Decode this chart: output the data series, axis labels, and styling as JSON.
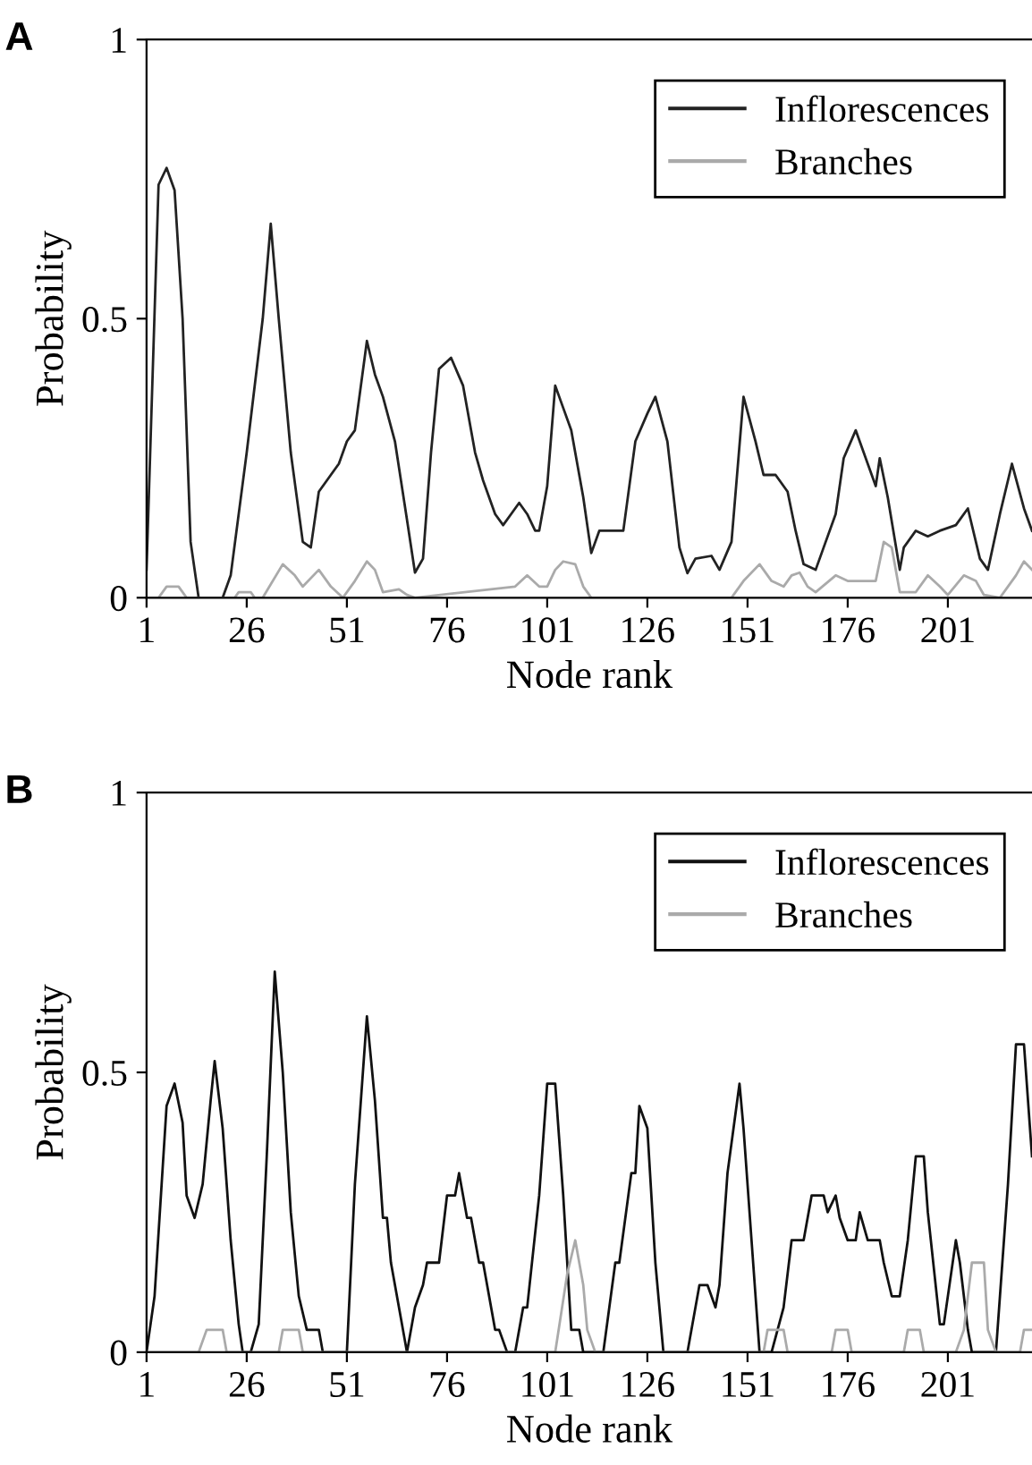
{
  "chart_data": [
    {
      "type": "line",
      "title": "A",
      "xlabel": "Node rank",
      "ylabel": "Probability",
      "xlim": [
        1,
        222
      ],
      "ylim": [
        0,
        1
      ],
      "xticks": [
        1,
        26,
        51,
        76,
        101,
        126,
        151,
        176,
        201
      ],
      "yticks": [
        0,
        0.5,
        1
      ],
      "grid": false,
      "legend": "top right",
      "marker": "none",
      "line_style": "solid",
      "series": [
        {
          "name": "Inflorescences",
          "color": "#222222",
          "x": [
            1,
            4,
            6,
            8,
            10,
            12,
            14,
            20,
            22,
            26,
            30,
            32,
            34,
            37,
            40,
            42,
            44,
            46,
            49,
            51,
            53,
            56,
            58,
            60,
            63,
            66,
            68,
            70,
            72,
            74,
            77,
            80,
            83,
            85,
            88,
            90,
            92,
            94,
            96,
            98,
            99,
            101,
            103,
            105,
            107,
            110,
            112,
            114,
            116,
            120,
            123,
            126,
            128,
            131,
            134,
            136,
            138,
            142,
            144,
            147,
            150,
            153,
            155,
            158,
            161,
            163,
            165,
            168,
            170,
            173,
            175,
            178,
            180,
            183,
            184,
            186,
            189,
            190,
            193,
            196,
            199,
            203,
            206,
            209,
            211,
            214,
            217,
            220,
            222
          ],
          "values": [
            0.05,
            0.74,
            0.77,
            0.73,
            0.5,
            0.1,
            0,
            0,
            0.04,
            0.26,
            0.5,
            0.67,
            0.5,
            0.26,
            0.1,
            0.09,
            0.19,
            0.21,
            0.24,
            0.28,
            0.3,
            0.46,
            0.4,
            0.36,
            0.28,
            0.14,
            0.045,
            0.07,
            0.26,
            0.41,
            0.43,
            0.38,
            0.26,
            0.21,
            0.15,
            0.13,
            0.15,
            0.17,
            0.15,
            0.12,
            0.12,
            0.2,
            0.38,
            0.34,
            0.3,
            0.18,
            0.08,
            0.12,
            0.12,
            0.12,
            0.28,
            0.33,
            0.36,
            0.28,
            0.09,
            0.044,
            0.07,
            0.075,
            0.05,
            0.1,
            0.36,
            0.28,
            0.22,
            0.22,
            0.19,
            0.12,
            0.06,
            0.05,
            0.09,
            0.15,
            0.25,
            0.3,
            0.26,
            0.2,
            0.25,
            0.18,
            0.05,
            0.09,
            0.12,
            0.11,
            0.12,
            0.13,
            0.16,
            0.07,
            0.05,
            0.15,
            0.24,
            0.16,
            0.12
          ]
        },
        {
          "name": "Branches",
          "color": "#aaaaaa",
          "x": [
            1,
            4,
            6,
            9,
            11,
            23,
            24,
            27,
            28,
            30,
            35,
            38,
            40,
            44,
            47,
            50,
            53,
            56,
            58,
            60,
            64,
            66,
            68,
            93,
            96,
            99,
            101,
            103,
            105,
            108,
            110,
            112,
            147,
            150,
            154,
            157,
            160,
            162,
            164,
            166,
            168,
            173,
            176,
            183,
            185,
            187,
            189,
            193,
            196,
            199,
            201,
            205,
            208,
            210,
            214,
            218,
            220,
            222
          ],
          "values": [
            0,
            0,
            0.02,
            0.02,
            0,
            0,
            0.01,
            0.01,
            0,
            0,
            0.06,
            0.04,
            0.02,
            0.05,
            0.02,
            0,
            0.03,
            0.065,
            0.05,
            0.01,
            0.015,
            0.005,
            0,
            0.02,
            0.04,
            0.02,
            0.02,
            0.05,
            0.065,
            0.06,
            0.02,
            0,
            0,
            0.03,
            0.06,
            0.03,
            0.02,
            0.04,
            0.045,
            0.02,
            0.01,
            0.04,
            0.03,
            0.03,
            0.1,
            0.09,
            0.01,
            0.01,
            0.04,
            0.02,
            0.005,
            0.04,
            0.03,
            0.005,
            0,
            0.04,
            0.065,
            0.05
          ]
        }
      ]
    },
    {
      "type": "line",
      "title": "B",
      "xlabel": "Node rank",
      "ylabel": "Probability",
      "xlim": [
        1,
        222
      ],
      "ylim": [
        0,
        1
      ],
      "xticks": [
        1,
        26,
        51,
        76,
        101,
        126,
        151,
        176,
        201
      ],
      "yticks": [
        0,
        0.5,
        1
      ],
      "grid": false,
      "legend": "top right",
      "marker": "none",
      "line_style": "solid",
      "series": [
        {
          "name": "Inflorescences",
          "color": "#111111",
          "x": [
            1,
            3,
            6,
            8,
            10,
            11,
            13,
            15,
            17,
            18,
            20,
            22,
            24,
            25,
            27,
            29,
            31,
            33,
            35,
            37,
            39,
            41,
            44,
            45,
            51,
            53,
            56,
            58,
            60,
            61,
            62,
            64,
            66,
            68,
            70,
            71,
            74,
            76,
            78,
            79,
            81,
            82,
            84,
            85,
            88,
            89,
            91,
            93,
            95,
            96,
            99,
            101,
            103,
            105,
            107,
            109,
            110,
            115,
            118,
            119,
            122,
            123,
            124,
            126,
            128,
            130,
            136,
            139,
            141,
            143,
            144,
            146,
            149,
            150,
            152,
            154,
            157,
            160,
            162,
            165,
            167,
            170,
            171,
            173,
            174,
            176,
            178,
            179,
            181,
            184,
            185,
            187,
            189,
            191,
            193,
            195,
            196,
            199,
            200,
            203,
            204,
            206,
            207,
            213,
            216,
            218,
            220,
            222
          ],
          "values": [
            0,
            0.1,
            0.44,
            0.48,
            0.41,
            0.28,
            0.24,
            0.3,
            0.45,
            0.52,
            0.4,
            0.2,
            0.05,
            0,
            0,
            0.05,
            0.35,
            0.68,
            0.5,
            0.25,
            0.1,
            0.04,
            0.04,
            0,
            0,
            0.3,
            0.6,
            0.45,
            0.24,
            0.24,
            0.16,
            0.08,
            0,
            0.08,
            0.12,
            0.16,
            0.16,
            0.28,
            0.28,
            0.32,
            0.24,
            0.24,
            0.16,
            0.16,
            0.04,
            0.04,
            0,
            0,
            0.08,
            0.08,
            0.28,
            0.48,
            0.48,
            0.28,
            0.04,
            0.04,
            0,
            0,
            0.16,
            0.16,
            0.32,
            0.32,
            0.44,
            0.4,
            0.16,
            0,
            0,
            0.12,
            0.12,
            0.08,
            0.12,
            0.32,
            0.48,
            0.4,
            0.2,
            0,
            0,
            0.08,
            0.2,
            0.2,
            0.28,
            0.28,
            0.25,
            0.28,
            0.24,
            0.2,
            0.2,
            0.25,
            0.2,
            0.2,
            0.16,
            0.1,
            0.1,
            0.2,
            0.35,
            0.35,
            0.25,
            0.05,
            0.05,
            0.2,
            0.16,
            0.04,
            0,
            0,
            0.3,
            0.55,
            0.55,
            0.35
          ]
        },
        {
          "name": "Branches",
          "color": "#aaaaaa",
          "x": [
            1,
            14,
            16,
            20,
            21,
            34,
            35,
            39,
            40,
            103,
            106,
            108,
            110,
            111,
            113,
            155,
            156,
            160,
            161,
            172,
            173,
            176,
            177,
            190,
            191,
            194,
            195,
            203,
            205,
            207,
            210,
            211,
            213,
            219,
            220,
            222
          ],
          "values": [
            0,
            0,
            0.04,
            0.04,
            0,
            0,
            0.04,
            0.04,
            0,
            0,
            0.14,
            0.2,
            0.12,
            0.04,
            0,
            0,
            0.04,
            0.04,
            0,
            0,
            0.04,
            0.04,
            0,
            0,
            0.04,
            0.04,
            0,
            0,
            0.04,
            0.16,
            0.16,
            0.04,
            0,
            0,
            0.04,
            0.04
          ]
        }
      ]
    }
  ]
}
